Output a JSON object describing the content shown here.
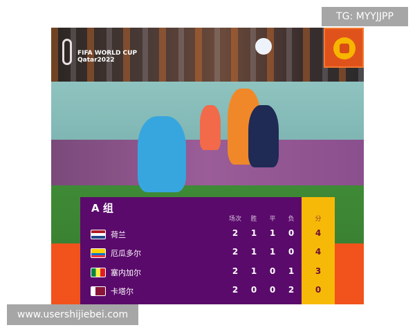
{
  "watermark_top": "TG: MYYJJPP",
  "watermark_bottom": "www.usershijiebei.com",
  "logo": {
    "line1": "FIFA WORLD CUP",
    "line2": "Qatar2022"
  },
  "table": {
    "group": "A 组",
    "headers": [
      "场次",
      "胜",
      "平",
      "负",
      "分"
    ],
    "rows": [
      {
        "team": "荷兰",
        "flag": "netherlands",
        "p": "2",
        "w": "1",
        "d": "1",
        "l": "0",
        "pts": "4"
      },
      {
        "team": "厄瓜多尔",
        "flag": "ecuador",
        "p": "2",
        "w": "1",
        "d": "1",
        "l": "0",
        "pts": "4"
      },
      {
        "team": "塞内加尔",
        "flag": "senegal",
        "p": "2",
        "w": "1",
        "d": "0",
        "l": "1",
        "pts": "3"
      },
      {
        "team": "卡塔尔",
        "flag": "qatar",
        "p": "2",
        "w": "0",
        "d": "0",
        "l": "2",
        "pts": "0"
      }
    ]
  },
  "colors": {
    "panel": "#5a0a6b",
    "points": "#f7b908",
    "accent": "#f2521b"
  }
}
